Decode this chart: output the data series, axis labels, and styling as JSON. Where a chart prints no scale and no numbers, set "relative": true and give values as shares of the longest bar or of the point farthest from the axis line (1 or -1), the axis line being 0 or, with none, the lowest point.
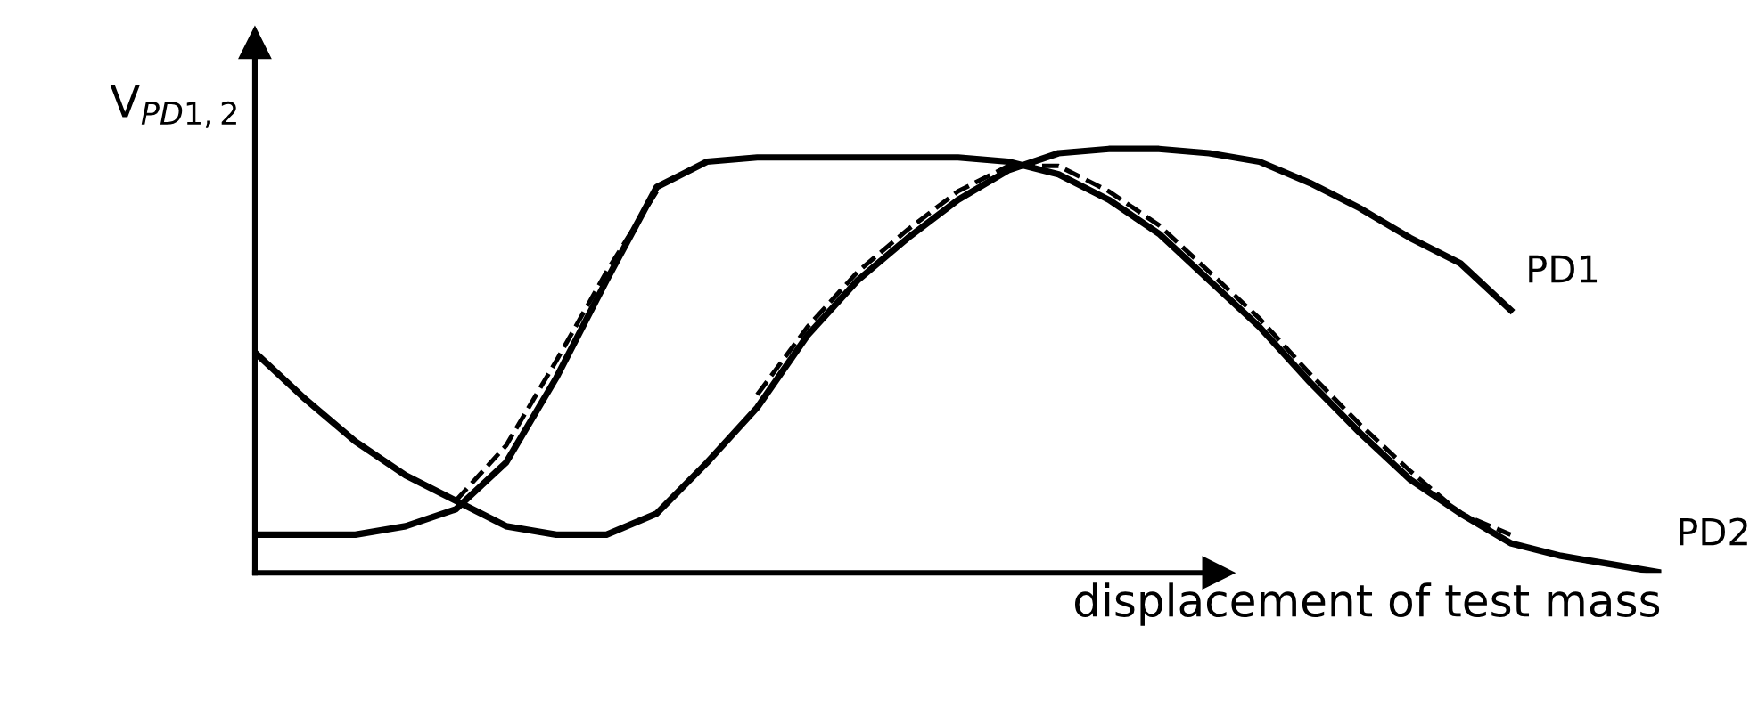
{
  "chart_data": {
    "type": "line",
    "relative": true,
    "xlabel": "displacement of test mass",
    "ylabel": "V$_{PD1,2}$",
    "legend": false,
    "marker": "none",
    "categories": [
      null,
      null,
      null,
      null,
      null,
      null,
      null,
      null,
      null,
      null,
      null,
      null,
      null,
      null,
      null,
      null,
      null,
      null,
      null,
      null,
      null,
      null,
      null,
      null,
      null,
      null,
      null,
      null,
      null
    ],
    "series": [
      {
        "name": "PD1",
        "color": "#000000",
        "line_style": "solid",
        "values": [
          0.52,
          0.41,
          0.31,
          0.23,
          0.17,
          0.11,
          0.09,
          0.09,
          0.14,
          0.26,
          0.39,
          0.56,
          0.69,
          0.79,
          0.88,
          0.95,
          0.99,
          1.0,
          1.0,
          0.99,
          0.97,
          0.92,
          0.86,
          0.79,
          0.73,
          0.62,
          null,
          null,
          null
        ]
      },
      {
        "name": "PD2",
        "color": "#000000",
        "line_style": "solid",
        "values": [
          0.09,
          0.09,
          0.09,
          0.11,
          0.15,
          0.26,
          0.46,
          0.69,
          0.91,
          0.97,
          0.98,
          0.98,
          0.98,
          0.98,
          0.98,
          0.97,
          0.94,
          0.88,
          0.8,
          0.69,
          0.58,
          0.45,
          0.33,
          0.22,
          0.14,
          0.07,
          0.04,
          0.02,
          0.0
        ]
      },
      {
        "color": "#000000",
        "line_style": "dashed",
        "values": [
          null,
          null,
          null,
          null,
          0.17,
          0.3,
          0.5,
          0.71,
          0.9,
          null,
          0.42,
          0.58,
          0.71,
          0.81,
          0.9,
          0.96,
          0.96,
          0.9,
          0.82,
          0.71,
          0.6,
          0.47,
          0.35,
          0.24,
          0.14,
          0.09,
          null,
          null,
          null
        ]
      }
    ]
  }
}
